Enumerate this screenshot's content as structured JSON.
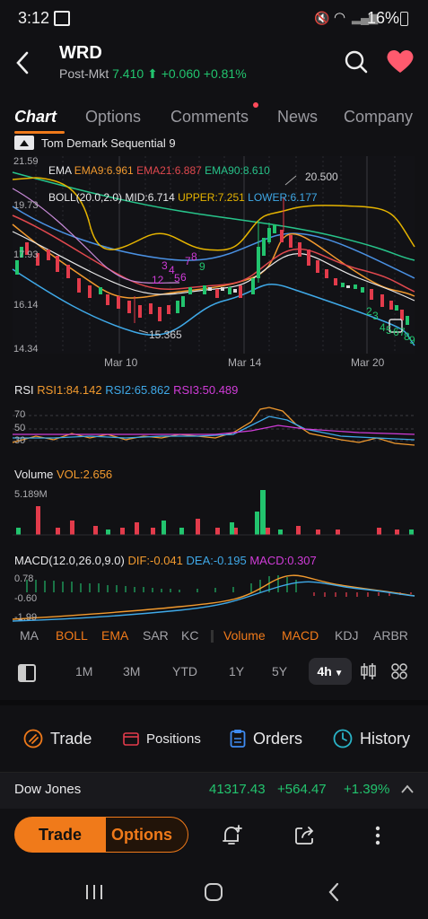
{
  "status_bar": {
    "time": "3:12",
    "battery": "16%"
  },
  "header": {
    "ticker": "WRD",
    "post_market_label": "Post-Mkt",
    "post_market_price": "7.410",
    "post_market_change": "+0.060",
    "post_market_pct": "+0.81%"
  },
  "tabs": [
    "Chart",
    "Options",
    "Comments",
    "News",
    "Company"
  ],
  "chart": {
    "study_label": "Tom Demark Sequential 9",
    "price_axis": [
      "21.59",
      "19.73",
      "17.93",
      "16.14",
      "14.34"
    ],
    "ema_label": "EMA",
    "ema9": "EMA9:6.961",
    "ema21": "EMA21:6.887",
    "ema90": "EMA90:8.610",
    "boll_label": "BOLL(20.0,2.0)",
    "boll_mid": "MID:6.714",
    "boll_upper": "UPPER:7.251",
    "boll_lower": "LOWER:6.177",
    "high_label": "20.500",
    "low_label": "15.365",
    "dates": [
      "Mar 10",
      "Mar 14",
      "Mar 20"
    ],
    "td_counts_red": [
      "12",
      "3",
      "4",
      "5",
      "6",
      "7",
      "8"
    ],
    "td_counts_green": [
      "9",
      "2",
      "3",
      "4",
      "5",
      "6",
      "7",
      "8",
      "9"
    ]
  },
  "rsi": {
    "label": "RSI",
    "rsi1": "RSI1:84.142",
    "rsi2": "RSI2:65.862",
    "rsi3": "RSI3:50.489",
    "levels": [
      "70",
      "50",
      "30"
    ]
  },
  "volume": {
    "label": "Volume",
    "vol": "VOL:2.656",
    "max": "5.189M"
  },
  "macd": {
    "label": "MACD(12.0,26.0,9.0)",
    "dif": "DIF:-0.041",
    "dea": "DEA:-0.195",
    "macd": "MACD:0.307",
    "levels": [
      "0.78",
      "-0.60",
      "-1.99"
    ]
  },
  "indicators": [
    "MA",
    "BOLL",
    "EMA",
    "SAR",
    "KC",
    "Volume",
    "MACD",
    "KDJ",
    "ARBR"
  ],
  "periods": [
    "1M",
    "3M",
    "YTD",
    "1Y",
    "5Y"
  ],
  "selected_period": "4h",
  "actions": {
    "trade": "Trade",
    "positions": "Positions",
    "orders": "Orders",
    "history": "History"
  },
  "index": {
    "name": "Dow Jones",
    "value": "41317.43",
    "change": "+564.47",
    "pct": "+1.39%"
  },
  "bottom": {
    "trade": "Trade",
    "options": "Options"
  },
  "colors": {
    "accent": "#f07a1a",
    "up": "#22c46e",
    "down": "#e23b4b",
    "background": "#111114"
  }
}
